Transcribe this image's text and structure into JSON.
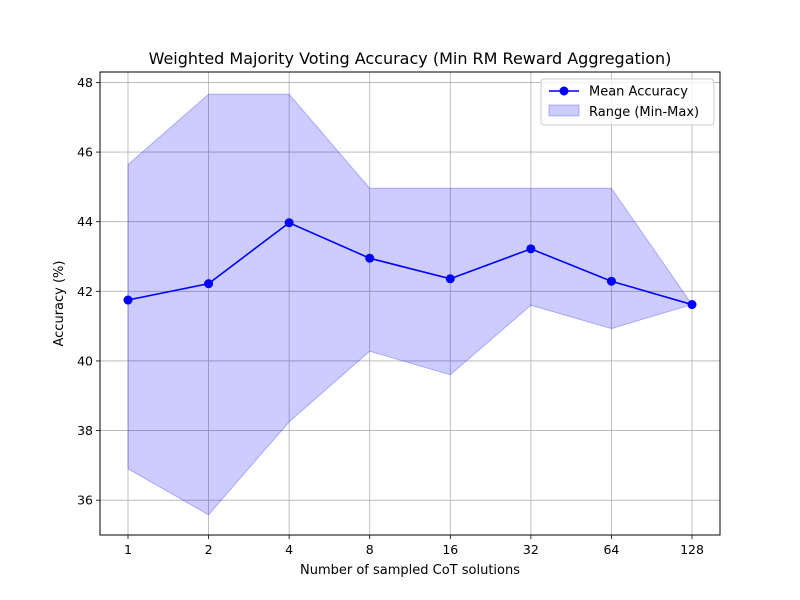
{
  "chart_data": {
    "type": "line",
    "title": "Weighted Majority Voting Accuracy (Min RM Reward Aggregation)",
    "xlabel": "Number of sampled CoT solutions",
    "ylabel": "Accuracy (%)",
    "x": [
      1,
      2,
      4,
      8,
      16,
      32,
      64,
      128
    ],
    "x_tick_labels": [
      "1",
      "2",
      "4",
      "8",
      "16",
      "32",
      "64",
      "128"
    ],
    "x_scale": "log2",
    "ylim": [
      35,
      48.3
    ],
    "y_ticks": [
      36,
      38,
      40,
      42,
      44,
      46,
      48
    ],
    "grid": true,
    "legend_position": "top-right",
    "series": [
      {
        "name": "Mean Accuracy",
        "kind": "line-marker",
        "color": "#0000ff",
        "values": [
          41.75,
          42.22,
          43.97,
          42.95,
          42.36,
          43.22,
          42.29,
          41.62
        ]
      },
      {
        "name": "Range (Min-Max)",
        "kind": "band",
        "color": "#0000ff",
        "opacity": 0.2,
        "lower": [
          36.9,
          35.58,
          38.25,
          40.28,
          39.6,
          41.6,
          40.93,
          41.62
        ],
        "upper": [
          45.64,
          47.66,
          47.66,
          44.96,
          44.96,
          44.96,
          44.96,
          41.62
        ]
      }
    ]
  }
}
